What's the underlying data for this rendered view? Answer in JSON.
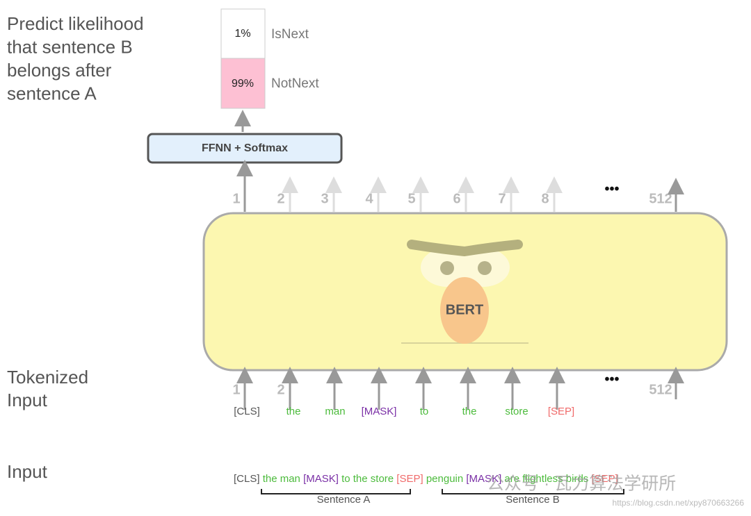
{
  "left_caption": [
    "Predict likelihood",
    "that sentence B",
    "belongs after",
    "sentence A"
  ],
  "output": {
    "is_next": {
      "prob": "1%",
      "label": "IsNext"
    },
    "not_next": {
      "prob": "99%",
      "label": "NotNext"
    }
  },
  "ffnn": "FFNN + Softmax",
  "output_positions": [
    "1",
    "2",
    "3",
    "4",
    "5",
    "6",
    "7",
    "8",
    "•••",
    "512"
  ],
  "model": "BERT",
  "tokenized_label": [
    "Tokenized",
    "Input"
  ],
  "input_positions": [
    "1",
    "2",
    "•••",
    "512"
  ],
  "tokens": [
    "[CLS]",
    "the",
    "man",
    "[MASK]",
    "to",
    "the",
    "store",
    "[SEP]"
  ],
  "input_label": "Input",
  "input_sentence": [
    "[CLS] ",
    "the man ",
    "[MASK] ",
    "to the store ",
    "[SEP] ",
    "penguin ",
    "[MASK] ",
    "are flightless birds ",
    "[SEP]"
  ],
  "sentence_a": "Sentence A",
  "sentence_b": "Sentence B",
  "watermark": "公众号 · 瓦力算法学研所",
  "url": "https://blog.csdn.net/xpy870663266"
}
